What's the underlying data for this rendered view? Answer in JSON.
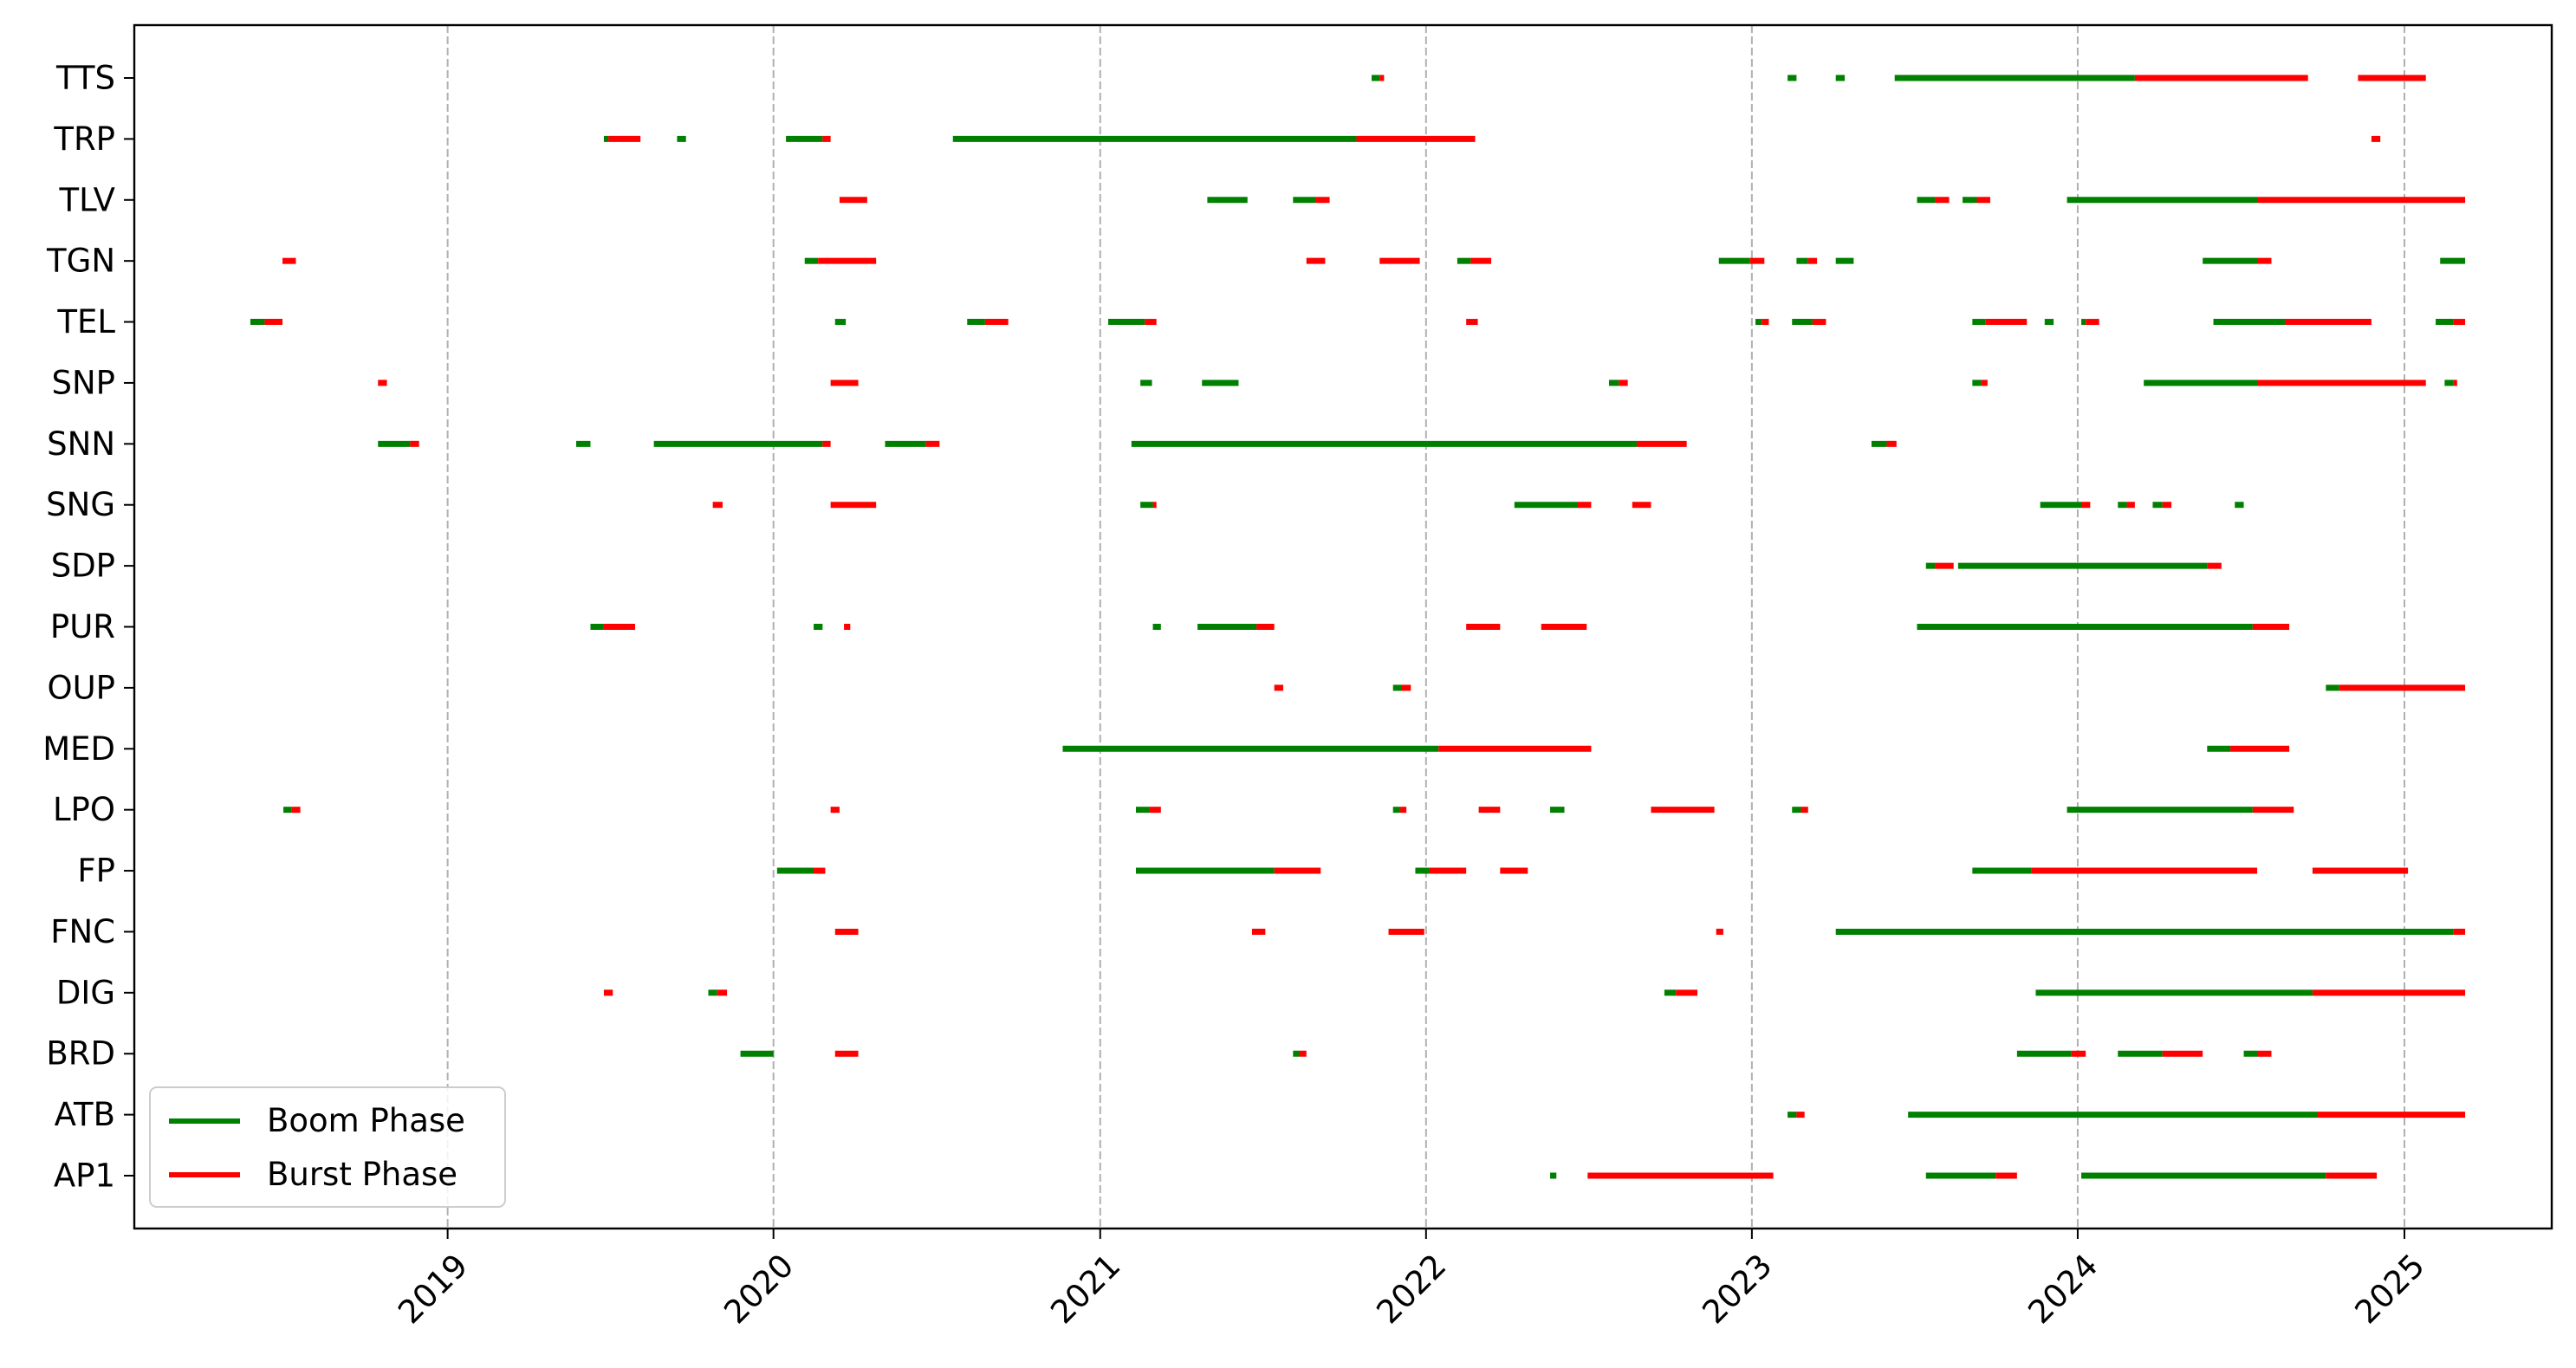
{
  "chart_data": {
    "type": "timeline",
    "title": "",
    "xlabel": "",
    "ylabel": "",
    "x_axis": "date",
    "xlim": [
      "2018-01-15",
      "2025-06-15"
    ],
    "x_ticks": [
      "2019-01-01",
      "2020-01-01",
      "2021-01-01",
      "2022-01-01",
      "2023-01-01",
      "2024-01-01",
      "2025-01-01"
    ],
    "x_tick_labels": [
      "2019",
      "2020",
      "2021",
      "2022",
      "2023",
      "2024",
      "2025"
    ],
    "x_tick_rotation_deg": 45,
    "x_grid": true,
    "categories": [
      "AP1",
      "ATB",
      "BRD",
      "DIG",
      "FNC",
      "FP",
      "LPO",
      "MED",
      "OUP",
      "PUR",
      "SDP",
      "SNG",
      "SNN",
      "SNP",
      "TEL",
      "TGN",
      "TLV",
      "TRP",
      "TTS"
    ],
    "colors": {
      "boom": "#008000",
      "burst": "#ff0000"
    },
    "legend": {
      "placement": "lower-left",
      "entries": [
        {
          "label": "Boom Phase",
          "color": "#008000"
        },
        {
          "label": "Burst Phase",
          "color": "#ff0000"
        }
      ]
    },
    "series": [
      {
        "name": "AP1",
        "segments": [
          [
            "2022-05-20",
            "2022-05-27",
            "boom"
          ],
          [
            "2022-07-01",
            "2023-01-25",
            "burst"
          ],
          [
            "2023-07-15",
            "2023-10-01",
            "boom"
          ],
          [
            "2023-10-01",
            "2023-10-25",
            "burst"
          ],
          [
            "2024-01-05",
            "2024-10-05",
            "boom"
          ],
          [
            "2024-10-05",
            "2024-12-01",
            "burst"
          ]
        ]
      },
      {
        "name": "ATB",
        "segments": [
          [
            "2023-02-10",
            "2023-02-20",
            "boom"
          ],
          [
            "2023-02-20",
            "2023-03-01",
            "burst"
          ],
          [
            "2023-06-25",
            "2024-09-25",
            "boom"
          ],
          [
            "2024-09-25",
            "2025-03-10",
            "burst"
          ]
        ]
      },
      {
        "name": "BRD",
        "segments": [
          [
            "2019-11-25",
            "2020-01-01",
            "boom"
          ],
          [
            "2020-03-10",
            "2020-04-05",
            "burst"
          ],
          [
            "2021-08-05",
            "2021-08-12",
            "boom"
          ],
          [
            "2021-08-12",
            "2021-08-20",
            "burst"
          ],
          [
            "2023-10-25",
            "2023-12-25",
            "boom"
          ],
          [
            "2023-12-25",
            "2024-01-10",
            "burst"
          ],
          [
            "2024-02-15",
            "2024-04-05",
            "boom"
          ],
          [
            "2024-04-05",
            "2024-05-20",
            "burst"
          ],
          [
            "2024-07-05",
            "2024-07-20",
            "boom"
          ],
          [
            "2024-07-20",
            "2024-08-05",
            "burst"
          ]
        ]
      },
      {
        "name": "DIG",
        "segments": [
          [
            "2019-06-25",
            "2019-07-05",
            "burst"
          ],
          [
            "2019-10-20",
            "2019-10-30",
            "boom"
          ],
          [
            "2019-10-30",
            "2019-11-10",
            "burst"
          ],
          [
            "2022-09-25",
            "2022-10-08",
            "boom"
          ],
          [
            "2022-10-08",
            "2022-11-01",
            "burst"
          ],
          [
            "2023-11-15",
            "2024-09-20",
            "boom"
          ],
          [
            "2024-09-20",
            "2025-03-10",
            "burst"
          ]
        ]
      },
      {
        "name": "FNC",
        "segments": [
          [
            "2020-03-10",
            "2020-04-05",
            "burst"
          ],
          [
            "2021-06-20",
            "2021-07-05",
            "burst"
          ],
          [
            "2021-11-20",
            "2021-12-30",
            "burst"
          ],
          [
            "2022-11-22",
            "2022-11-30",
            "burst"
          ],
          [
            "2023-04-05",
            "2025-02-25",
            "boom"
          ],
          [
            "2025-02-25",
            "2025-03-10",
            "burst"
          ]
        ]
      },
      {
        "name": "FP",
        "segments": [
          [
            "2020-01-05",
            "2020-02-15",
            "boom"
          ],
          [
            "2020-02-15",
            "2020-02-28",
            "burst"
          ],
          [
            "2021-02-10",
            "2021-07-15",
            "boom"
          ],
          [
            "2021-07-15",
            "2021-09-05",
            "burst"
          ],
          [
            "2021-12-20",
            "2022-01-05",
            "boom"
          ],
          [
            "2022-01-05",
            "2022-02-15",
            "burst"
          ],
          [
            "2022-03-25",
            "2022-04-25",
            "burst"
          ],
          [
            "2023-09-05",
            "2023-11-10",
            "boom"
          ],
          [
            "2023-11-10",
            "2024-07-20",
            "burst"
          ],
          [
            "2024-09-20",
            "2025-01-05",
            "burst"
          ]
        ]
      },
      {
        "name": "LPO",
        "segments": [
          [
            "2018-07-01",
            "2018-07-10",
            "boom"
          ],
          [
            "2018-07-10",
            "2018-07-20",
            "burst"
          ],
          [
            "2020-03-05",
            "2020-03-15",
            "burst"
          ],
          [
            "2021-02-10",
            "2021-02-25",
            "boom"
          ],
          [
            "2021-02-25",
            "2021-03-10",
            "burst"
          ],
          [
            "2021-11-25",
            "2021-12-03",
            "boom"
          ],
          [
            "2021-12-03",
            "2021-12-10",
            "burst"
          ],
          [
            "2022-03-01",
            "2022-03-25",
            "burst"
          ],
          [
            "2022-05-20",
            "2022-06-05",
            "boom"
          ],
          [
            "2022-09-10",
            "2022-11-20",
            "burst"
          ],
          [
            "2023-02-15",
            "2023-02-25",
            "boom"
          ],
          [
            "2023-02-25",
            "2023-03-05",
            "burst"
          ],
          [
            "2023-12-20",
            "2024-07-15",
            "boom"
          ],
          [
            "2024-07-15",
            "2024-08-30",
            "burst"
          ]
        ]
      },
      {
        "name": "MED",
        "segments": [
          [
            "2020-11-20",
            "2022-01-15",
            "boom"
          ],
          [
            "2022-01-15",
            "2022-07-05",
            "burst"
          ],
          [
            "2024-05-25",
            "2024-06-20",
            "boom"
          ],
          [
            "2024-06-20",
            "2024-08-25",
            "burst"
          ]
        ]
      },
      {
        "name": "OUP",
        "segments": [
          [
            "2021-07-15",
            "2021-07-25",
            "burst"
          ],
          [
            "2021-11-25",
            "2021-12-05",
            "boom"
          ],
          [
            "2021-12-05",
            "2021-12-15",
            "burst"
          ],
          [
            "2024-10-05",
            "2024-10-20",
            "boom"
          ],
          [
            "2024-10-20",
            "2025-03-10",
            "burst"
          ]
        ]
      },
      {
        "name": "PUR",
        "segments": [
          [
            "2019-06-10",
            "2019-06-25",
            "boom"
          ],
          [
            "2019-06-25",
            "2019-07-30",
            "burst"
          ],
          [
            "2020-02-15",
            "2020-02-25",
            "boom"
          ],
          [
            "2020-03-20",
            "2020-03-27",
            "burst"
          ],
          [
            "2021-03-01",
            "2021-03-10",
            "boom"
          ],
          [
            "2021-04-20",
            "2021-06-25",
            "boom"
          ],
          [
            "2021-06-25",
            "2021-07-15",
            "burst"
          ],
          [
            "2022-02-15",
            "2022-03-25",
            "burst"
          ],
          [
            "2022-05-10",
            "2022-06-30",
            "burst"
          ],
          [
            "2023-07-05",
            "2024-07-15",
            "boom"
          ],
          [
            "2024-07-15",
            "2024-08-25",
            "burst"
          ]
        ]
      },
      {
        "name": "SDP",
        "segments": [
          [
            "2023-07-15",
            "2023-07-25",
            "boom"
          ],
          [
            "2023-07-25",
            "2023-08-15",
            "burst"
          ],
          [
            "2023-08-20",
            "2024-05-25",
            "boom"
          ],
          [
            "2024-05-25",
            "2024-06-10",
            "burst"
          ]
        ]
      },
      {
        "name": "SNG",
        "segments": [
          [
            "2019-10-25",
            "2019-11-05",
            "burst"
          ],
          [
            "2020-03-05",
            "2020-04-25",
            "burst"
          ],
          [
            "2021-02-15",
            "2021-03-01",
            "boom"
          ],
          [
            "2021-03-01",
            "2021-03-05",
            "burst"
          ],
          [
            "2022-04-10",
            "2022-06-20",
            "boom"
          ],
          [
            "2022-06-20",
            "2022-07-05",
            "burst"
          ],
          [
            "2022-08-20",
            "2022-09-10",
            "burst"
          ],
          [
            "2023-11-20",
            "2024-01-05",
            "boom"
          ],
          [
            "2024-01-05",
            "2024-01-15",
            "burst"
          ],
          [
            "2024-02-15",
            "2024-02-25",
            "boom"
          ],
          [
            "2024-02-25",
            "2024-03-05",
            "burst"
          ],
          [
            "2024-03-25",
            "2024-04-05",
            "boom"
          ],
          [
            "2024-04-05",
            "2024-04-15",
            "burst"
          ],
          [
            "2024-06-25",
            "2024-07-05",
            "boom"
          ]
        ]
      },
      {
        "name": "SNN",
        "segments": [
          [
            "2018-10-15",
            "2018-11-20",
            "boom"
          ],
          [
            "2018-11-20",
            "2018-11-30",
            "burst"
          ],
          [
            "2019-05-25",
            "2019-06-10",
            "boom"
          ],
          [
            "2019-08-20",
            "2020-02-25",
            "boom"
          ],
          [
            "2020-02-25",
            "2020-03-05",
            "burst"
          ],
          [
            "2020-05-05",
            "2020-06-20",
            "boom"
          ],
          [
            "2020-06-20",
            "2020-07-05",
            "burst"
          ],
          [
            "2021-02-05",
            "2022-08-25",
            "boom"
          ],
          [
            "2022-08-25",
            "2022-10-20",
            "burst"
          ],
          [
            "2023-05-15",
            "2023-06-01",
            "boom"
          ],
          [
            "2023-06-01",
            "2023-06-12",
            "burst"
          ]
        ]
      },
      {
        "name": "SNP",
        "segments": [
          [
            "2018-10-15",
            "2018-10-25",
            "burst"
          ],
          [
            "2020-03-05",
            "2020-04-05",
            "burst"
          ],
          [
            "2021-02-15",
            "2021-02-28",
            "boom"
          ],
          [
            "2021-04-25",
            "2021-06-05",
            "boom"
          ],
          [
            "2022-07-25",
            "2022-08-05",
            "boom"
          ],
          [
            "2022-08-05",
            "2022-08-15",
            "burst"
          ],
          [
            "2023-09-05",
            "2023-09-15",
            "boom"
          ],
          [
            "2023-09-15",
            "2023-09-22",
            "burst"
          ],
          [
            "2024-03-15",
            "2024-07-20",
            "boom"
          ],
          [
            "2024-07-20",
            "2025-01-25",
            "burst"
          ],
          [
            "2025-02-15",
            "2025-02-25",
            "boom"
          ],
          [
            "2025-02-25",
            "2025-03-01",
            "burst"
          ]
        ]
      },
      {
        "name": "TEL",
        "segments": [
          [
            "2018-05-25",
            "2018-06-10",
            "boom"
          ],
          [
            "2018-06-10",
            "2018-06-30",
            "burst"
          ],
          [
            "2020-03-10",
            "2020-03-22",
            "boom"
          ],
          [
            "2020-08-05",
            "2020-08-25",
            "boom"
          ],
          [
            "2020-08-25",
            "2020-09-20",
            "burst"
          ],
          [
            "2021-01-10",
            "2021-02-20",
            "boom"
          ],
          [
            "2021-02-20",
            "2021-03-05",
            "burst"
          ],
          [
            "2022-02-15",
            "2022-02-28",
            "burst"
          ],
          [
            "2023-01-05",
            "2023-01-12",
            "boom"
          ],
          [
            "2023-01-12",
            "2023-01-20",
            "burst"
          ],
          [
            "2023-02-15",
            "2023-03-10",
            "boom"
          ],
          [
            "2023-03-10",
            "2023-03-25",
            "burst"
          ],
          [
            "2023-09-05",
            "2023-09-20",
            "boom"
          ],
          [
            "2023-09-20",
            "2023-11-05",
            "burst"
          ],
          [
            "2023-11-25",
            "2023-12-05",
            "boom"
          ],
          [
            "2024-01-05",
            "2024-01-10",
            "boom"
          ],
          [
            "2024-01-10",
            "2024-01-25",
            "burst"
          ],
          [
            "2024-06-01",
            "2024-08-20",
            "boom"
          ],
          [
            "2024-08-20",
            "2024-11-25",
            "burst"
          ],
          [
            "2025-02-05",
            "2025-02-25",
            "boom"
          ],
          [
            "2025-02-25",
            "2025-03-10",
            "burst"
          ]
        ]
      },
      {
        "name": "TGN",
        "segments": [
          [
            "2018-06-30",
            "2018-07-15",
            "burst"
          ],
          [
            "2020-02-05",
            "2020-02-20",
            "boom"
          ],
          [
            "2020-02-20",
            "2020-04-25",
            "burst"
          ],
          [
            "2021-08-20",
            "2021-09-10",
            "burst"
          ],
          [
            "2021-11-10",
            "2021-12-25",
            "burst"
          ],
          [
            "2022-02-05",
            "2022-02-20",
            "boom"
          ],
          [
            "2022-02-20",
            "2022-03-15",
            "burst"
          ],
          [
            "2022-11-25",
            "2022-12-30",
            "boom"
          ],
          [
            "2022-12-30",
            "2023-01-15",
            "burst"
          ],
          [
            "2023-02-20",
            "2023-03-05",
            "boom"
          ],
          [
            "2023-03-05",
            "2023-03-15",
            "burst"
          ],
          [
            "2023-04-05",
            "2023-04-25",
            "boom"
          ],
          [
            "2024-05-20",
            "2024-07-20",
            "boom"
          ],
          [
            "2024-07-20",
            "2024-08-05",
            "burst"
          ],
          [
            "2025-02-10",
            "2025-03-10",
            "boom"
          ]
        ]
      },
      {
        "name": "TLV",
        "segments": [
          [
            "2020-03-15",
            "2020-04-15",
            "burst"
          ],
          [
            "2021-05-01",
            "2021-06-15",
            "boom"
          ],
          [
            "2021-08-05",
            "2021-08-30",
            "boom"
          ],
          [
            "2021-08-30",
            "2021-09-15",
            "burst"
          ],
          [
            "2023-07-05",
            "2023-07-25",
            "boom"
          ],
          [
            "2023-07-25",
            "2023-08-10",
            "burst"
          ],
          [
            "2023-08-25",
            "2023-09-10",
            "boom"
          ],
          [
            "2023-09-10",
            "2023-09-25",
            "burst"
          ],
          [
            "2023-12-20",
            "2024-07-20",
            "boom"
          ],
          [
            "2024-07-20",
            "2025-03-10",
            "burst"
          ]
        ]
      },
      {
        "name": "TRP",
        "segments": [
          [
            "2019-06-25",
            "2019-06-30",
            "boom"
          ],
          [
            "2019-06-30",
            "2019-08-05",
            "burst"
          ],
          [
            "2019-09-15",
            "2019-09-25",
            "boom"
          ],
          [
            "2020-01-15",
            "2020-02-25",
            "boom"
          ],
          [
            "2020-02-25",
            "2020-03-05",
            "burst"
          ],
          [
            "2020-07-20",
            "2021-10-15",
            "boom"
          ],
          [
            "2021-10-15",
            "2022-02-25",
            "burst"
          ],
          [
            "2024-11-25",
            "2024-12-05",
            "burst"
          ]
        ]
      },
      {
        "name": "TTS",
        "segments": [
          [
            "2021-11-01",
            "2021-11-10",
            "boom"
          ],
          [
            "2021-11-10",
            "2021-11-15",
            "burst"
          ],
          [
            "2023-02-10",
            "2023-02-20",
            "boom"
          ],
          [
            "2023-04-05",
            "2023-04-15",
            "boom"
          ],
          [
            "2023-06-10",
            "2024-03-05",
            "boom"
          ],
          [
            "2024-03-05",
            "2024-09-15",
            "burst"
          ],
          [
            "2024-11-10",
            "2025-01-25",
            "burst"
          ]
        ]
      }
    ]
  }
}
